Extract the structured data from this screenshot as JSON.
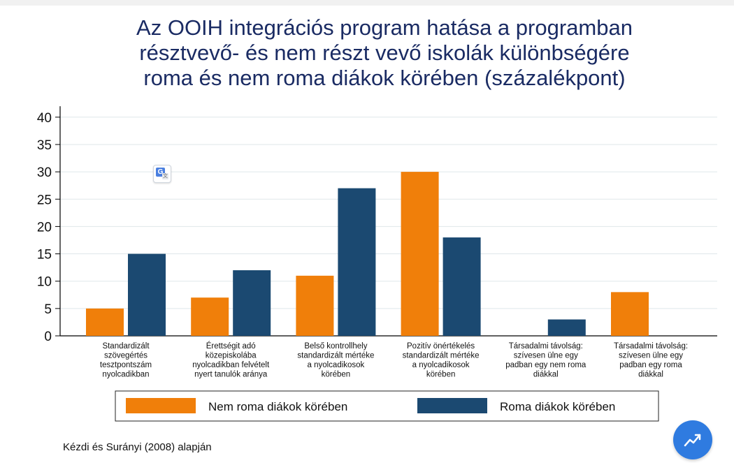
{
  "chart_data": {
    "type": "bar",
    "title_lines": [
      "Az OOIH integrációs program hatása a programban",
      "résztvevő- és nem részt vevő iskolák különbségére",
      "roma és nem roma diákok körében (százalékpont)"
    ],
    "xlabel": "",
    "ylabel": "",
    "ylim": [
      0,
      42
    ],
    "yticks": [
      0,
      5,
      10,
      15,
      20,
      25,
      30,
      35,
      40
    ],
    "grid": true,
    "legend_position": "bottom",
    "categories": [
      [
        "Standardizált",
        "szövegértés",
        "tesztpontszám",
        "nyolcadikban"
      ],
      [
        "Érettségit adó",
        "közepiskolába",
        "nyolcadikban felvételt",
        "nyert tanulók aránya"
      ],
      [
        "Belső kontrollhely",
        "standardizált mértéke",
        "a nyolcadikosok",
        "körében"
      ],
      [
        "Pozitív önértékelés",
        "standardizált mértéke",
        "a nyolcadikosok",
        "körében"
      ],
      [
        "Társadalmi távolság:",
        "szívesen ülne egy",
        "padban egy nem roma",
        "diákkal"
      ],
      [
        "Társadalmi távolság:",
        "szívesen ülne egy",
        "padban egy roma",
        "diákkal"
      ]
    ],
    "series": [
      {
        "name": "Nem roma diákok körében",
        "color": "#f07f0a",
        "values": [
          5,
          7,
          11,
          30,
          null,
          8
        ]
      },
      {
        "name": "Roma diákok körében",
        "color": "#1b4971",
        "values": [
          15,
          12,
          27,
          18,
          3,
          null
        ]
      }
    ]
  },
  "source": "Kézdi és Surányi (2008) alapján",
  "icons": {
    "translate": "translate-icon",
    "trend_button": "trend-chart-icon"
  }
}
